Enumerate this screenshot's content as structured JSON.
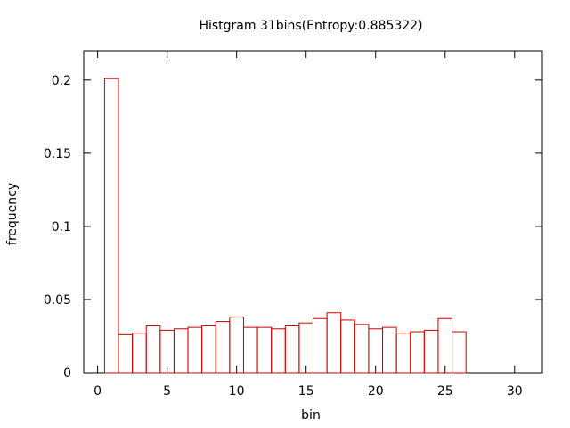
{
  "chart_data": {
    "type": "bar",
    "title": "Histgram 31bins(Entropy:0.885322)",
    "xlabel": "bin",
    "ylabel": "frequency",
    "xlim": [
      -1,
      32
    ],
    "ylim": [
      0,
      0.22
    ],
    "xticks": [
      0,
      5,
      10,
      15,
      20,
      25,
      30
    ],
    "yticks": [
      0,
      0.05,
      0.1,
      0.15,
      0.2
    ],
    "grid": false,
    "legend": "none",
    "bar_color": "#cc0000",
    "x": [
      1,
      2,
      3,
      4,
      5,
      6,
      7,
      8,
      9,
      10,
      11,
      12,
      13,
      14,
      15,
      16,
      17,
      18,
      19,
      20,
      21,
      22,
      23,
      24,
      25,
      26
    ],
    "values": [
      0.201,
      0.026,
      0.027,
      0.032,
      0.029,
      0.03,
      0.031,
      0.032,
      0.035,
      0.038,
      0.031,
      0.031,
      0.03,
      0.032,
      0.034,
      0.037,
      0.041,
      0.036,
      0.033,
      0.03,
      0.031,
      0.027,
      0.028,
      0.029,
      0.037,
      0.028
    ]
  }
}
